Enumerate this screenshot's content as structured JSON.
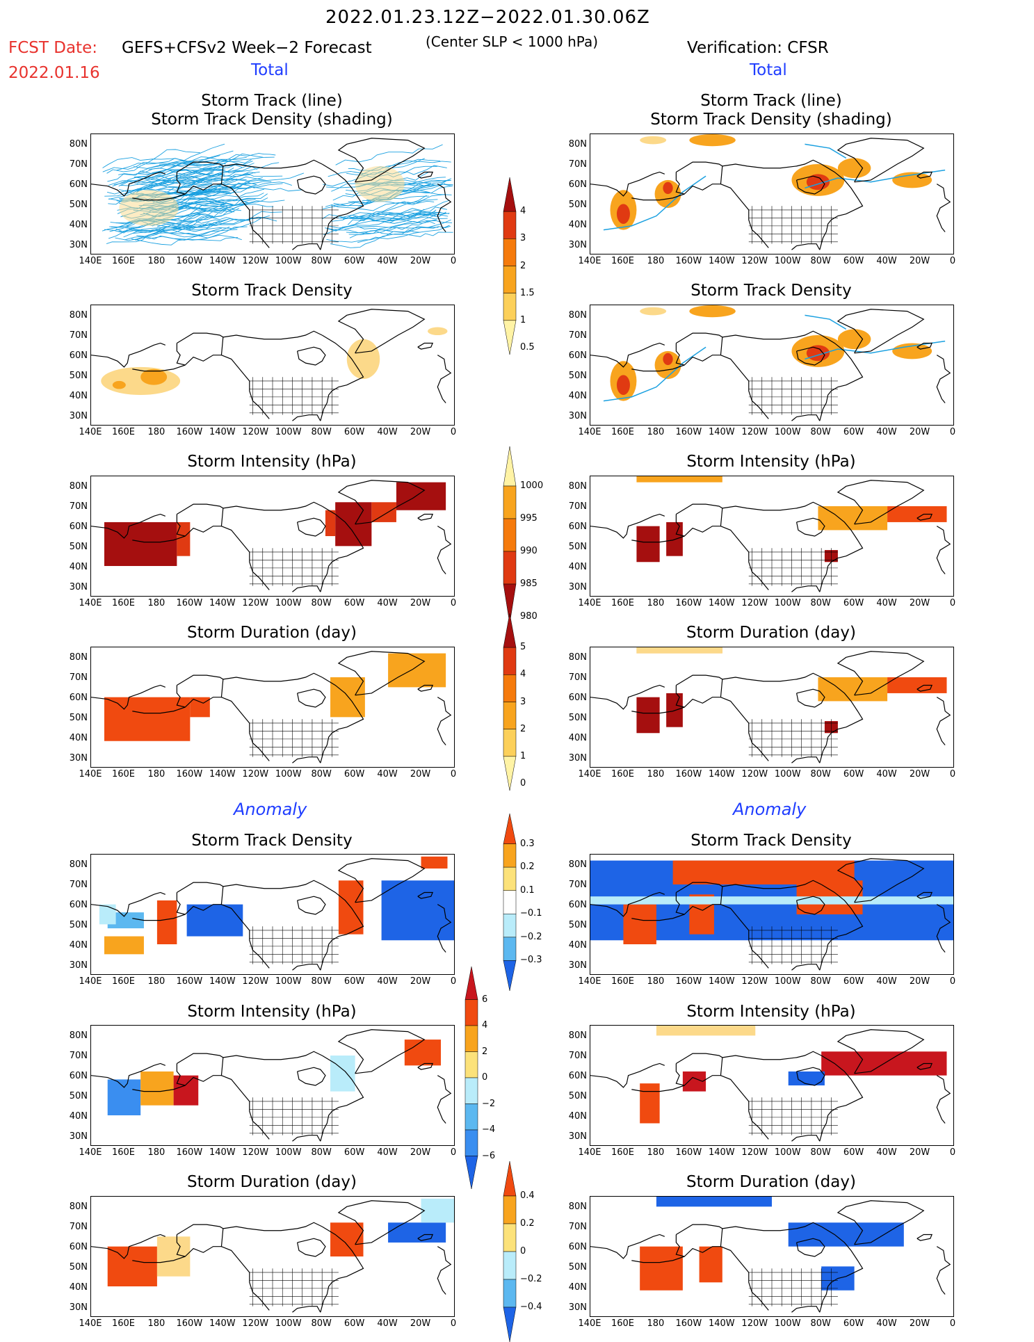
{
  "header": {
    "period": "2022.01.23.12Z−2022.01.30.06Z",
    "fcst_date_label": "FCST Date:",
    "fcst_date": "2022.01.16",
    "forecast_name": "GEFS+CFSv2 Week−2 Forecast",
    "threshold": "(Center SLP < 1000 hPa)",
    "verification": "Verification: CFSR"
  },
  "sections": {
    "total_left": "Total",
    "total_right": "Total",
    "anomaly_left": "Anomaly",
    "anomaly_right": "Anomaly"
  },
  "panel_titles": {
    "track_line": "Storm Track (line)",
    "track_density_shading": "Storm Track Density (shading)",
    "track_density": "Storm Track Density",
    "intensity": "Storm Intensity (hPa)",
    "duration": "Storm Duration (day)"
  },
  "axes": {
    "lat_labels": [
      "80N",
      "70N",
      "60N",
      "50N",
      "40N",
      "30N"
    ],
    "lon_labels": [
      "140E",
      "160E",
      "180",
      "160W",
      "140W",
      "120W",
      "100W",
      "80W",
      "60W",
      "40W",
      "20W",
      "0"
    ]
  },
  "colorbars": [
    {
      "id": "density",
      "labels": [
        "4",
        "3",
        "2",
        "1.5",
        "1",
        "0.5"
      ],
      "colors": [
        "#a50f0f",
        "#e03a12",
        "#f57a0c",
        "#f8a41e",
        "#fcd05a",
        "#fff3a5"
      ]
    },
    {
      "id": "intensity",
      "labels": [
        "1000",
        "995",
        "990",
        "985",
        "980"
      ],
      "colors": [
        "#fff3a5",
        "#f8a41e",
        "#f57a0c",
        "#e03a12",
        "#a50f0f"
      ]
    },
    {
      "id": "duration",
      "labels": [
        "5",
        "4",
        "3",
        "2",
        "1",
        "0"
      ],
      "colors": [
        "#a50f0f",
        "#e03a12",
        "#f57a0c",
        "#f8a41e",
        "#fcd05a",
        "#fff3a5"
      ]
    },
    {
      "id": "anom_density",
      "labels": [
        "0.3",
        "0.2",
        "0.1",
        "−0.1",
        "−0.2",
        "−0.3"
      ],
      "colors": [
        "#f04a10",
        "#f8a41e",
        "#fce27a",
        "#ffffff",
        "#b9ecfa",
        "#5cb8f0",
        "#1e64e6"
      ]
    },
    {
      "id": "anom_intensity",
      "labels": [
        "6",
        "4",
        "2",
        "0",
        "−2",
        "−4",
        "−6"
      ],
      "colors": [
        "#c8161e",
        "#f04a10",
        "#f8a41e",
        "#fce27a",
        "#b9ecfa",
        "#5cb8f0",
        "#3a8ef0",
        "#1e64e6"
      ]
    },
    {
      "id": "anom_duration",
      "labels": [
        "0.4",
        "0.2",
        "0",
        "−0.2",
        "−0.4"
      ],
      "colors": [
        "#f04a10",
        "#f8a41e",
        "#fce27a",
        "#b9ecfa",
        "#5cb8f0",
        "#1e64e6"
      ]
    }
  ],
  "colors": {
    "track_line": "#1aa0e0",
    "density_light": "#fcd98a",
    "density_mid": "#f8a41e",
    "density_high": "#e03a12",
    "density_max": "#a50f0f",
    "anom_pos": "#f04a10",
    "anom_blue": "#1e64e6",
    "anom_lightblue": "#b9ecfa"
  }
}
